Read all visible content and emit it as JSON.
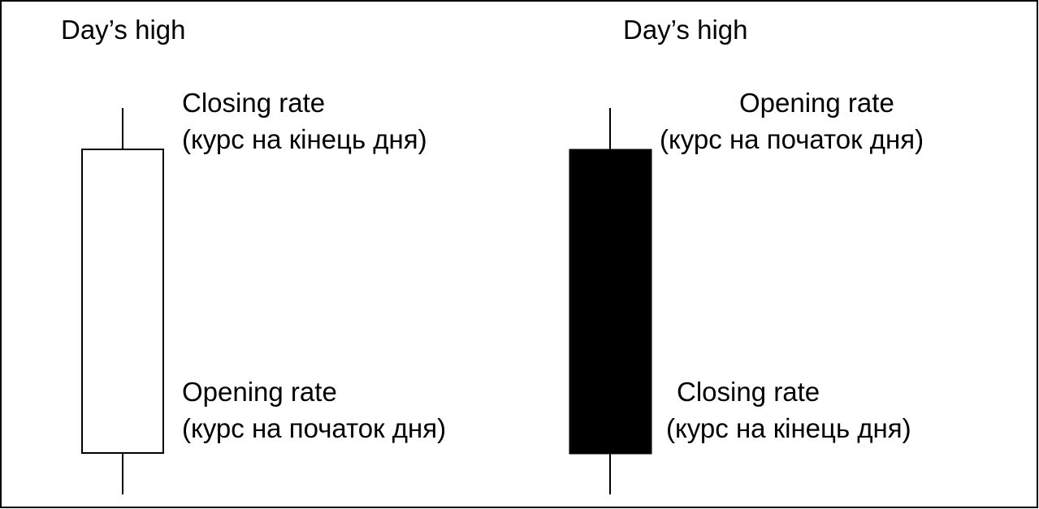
{
  "candles": [
    {
      "top_label": "Day’s high",
      "upper_label": {
        "title": "Closing rate",
        "subtitle": "(курс на кінець дня)"
      },
      "lower_label": {
        "title": "Opening rate",
        "subtitle": "(курс на початок дня)"
      }
    },
    {
      "top_label": "Day’s high",
      "upper_label": {
        "title": "Opening rate",
        "subtitle": "(курс на початок дня)"
      },
      "lower_label": {
        "title": "Closing rate",
        "subtitle": "(курс на кінець дня)"
      }
    }
  ]
}
